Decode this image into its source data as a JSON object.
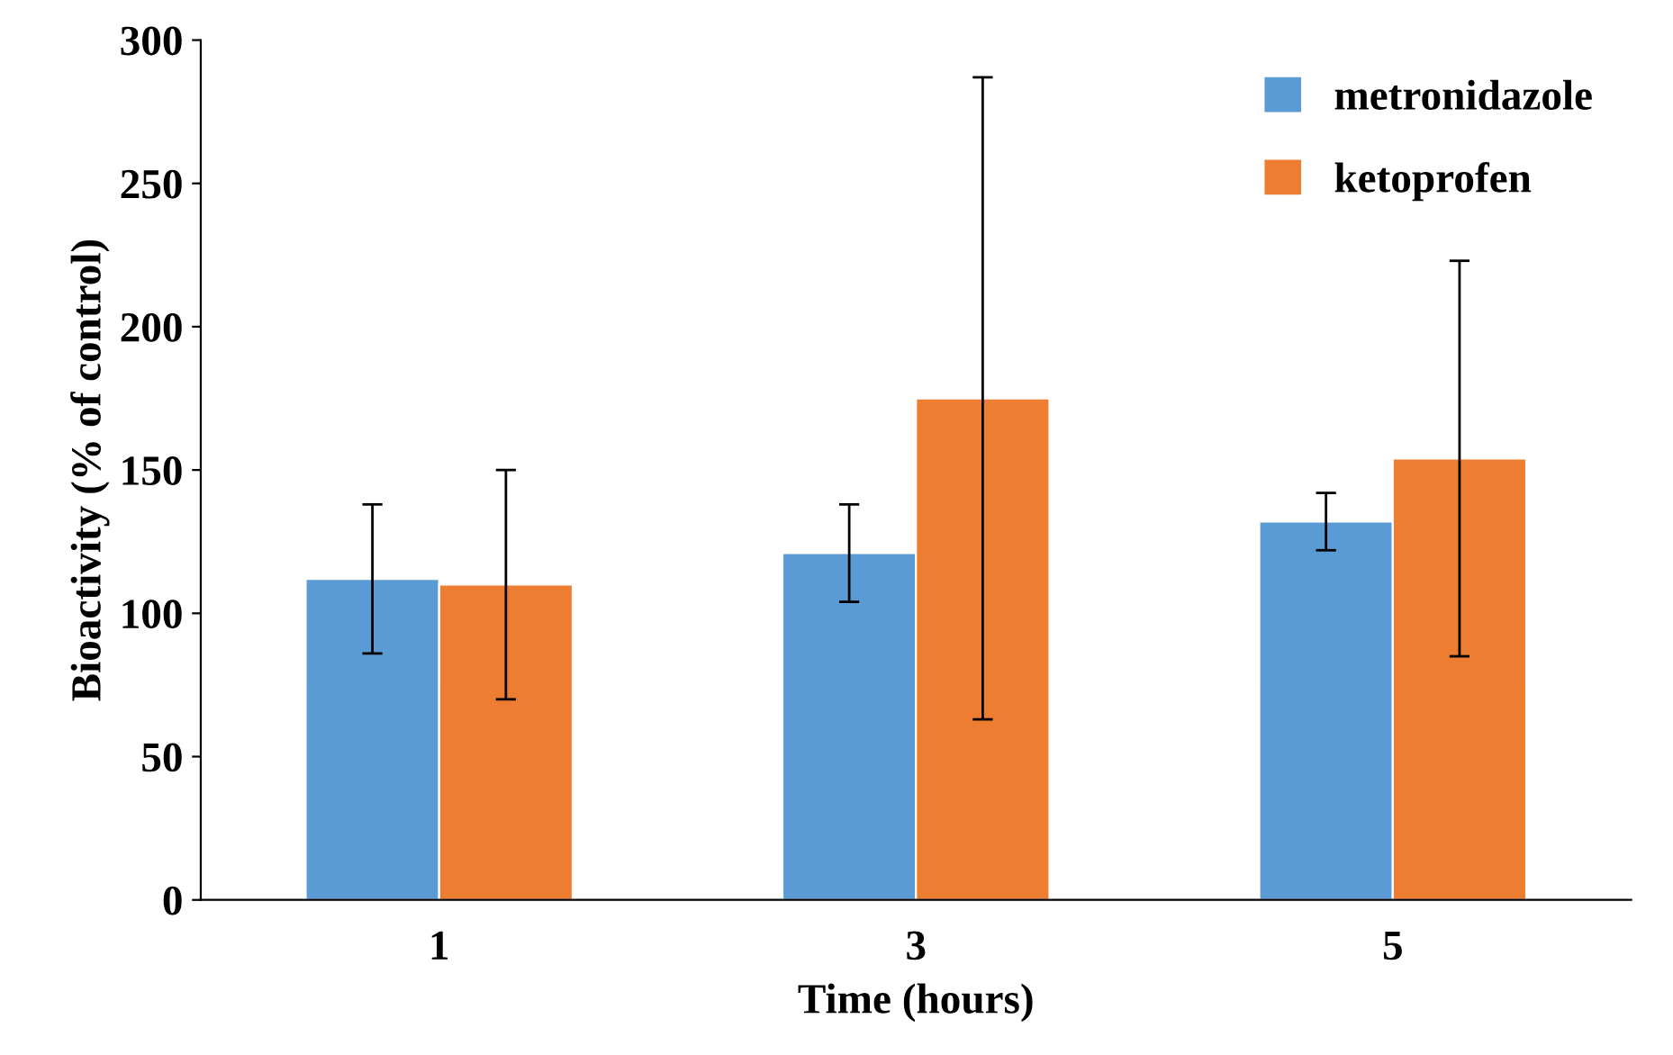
{
  "chart_data": {
    "type": "bar",
    "xlabel": "Time (hours)",
    "ylabel": "Bioactivity (% of control)",
    "categories": [
      "1",
      "3",
      "5"
    ],
    "series": [
      {
        "name": "metronidazole",
        "color": "#5b9bd5",
        "values": [
          112,
          121,
          132
        ],
        "errors": [
          26,
          17,
          10
        ]
      },
      {
        "name": "ketoprofen",
        "color": "#ed7d31",
        "values": [
          110,
          175,
          154
        ],
        "errors": [
          40,
          112,
          69
        ]
      }
    ],
    "ylim": [
      0,
      300
    ],
    "yticks": [
      0,
      50,
      100,
      150,
      200,
      250,
      300
    ],
    "grid": false,
    "legend": "top right"
  }
}
